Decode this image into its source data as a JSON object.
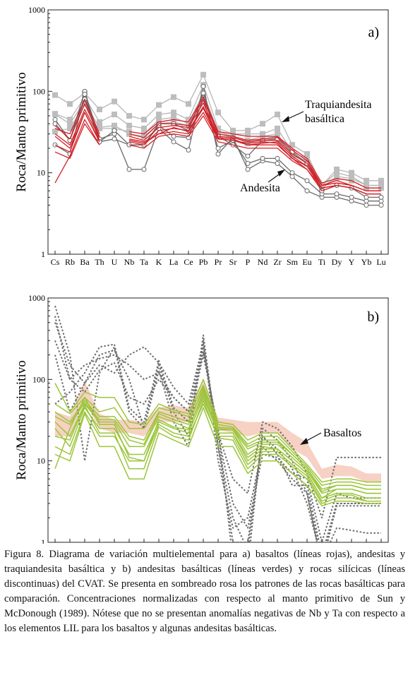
{
  "chart_data": [
    {
      "type": "line",
      "panel_label": "a)",
      "ylabel": "Roca/Manto primitivo",
      "yscale": "log",
      "ylim": [
        1,
        1000
      ],
      "ytick_labels": [
        "1",
        "10",
        "100",
        "1000"
      ],
      "categories": [
        "Cs",
        "Rb",
        "Ba",
        "Th",
        "U",
        "Nb",
        "Ta",
        "K",
        "La",
        "Ce",
        "Pb",
        "Pr",
        "Sr",
        "P",
        "Nd",
        "Zr",
        "Sm",
        "Eu",
        "Ti",
        "Dy",
        "Y",
        "Yb",
        "Lu"
      ],
      "annotations": [
        "Traquiandesita basáltica",
        "Andesita"
      ],
      "colors": {
        "basaltos": "#d42027",
        "andesitas": "#6a6a6a",
        "traquiandesita": "#b5b5b5"
      },
      "series": [
        {
          "group": "basaltos",
          "values": [
            38,
            26,
            70,
            28,
            null,
            30,
            27,
            40,
            40,
            38,
            80,
            30,
            28,
            25,
            26,
            27,
            19,
            14,
            7,
            8,
            7,
            6,
            6
          ]
        },
        {
          "group": "basaltos",
          "values": [
            30,
            22,
            60,
            27,
            null,
            28,
            25,
            36,
            38,
            36,
            72,
            28,
            27,
            24,
            25,
            25,
            17,
            13,
            7,
            7.5,
            7,
            6,
            6
          ]
        },
        {
          "group": "basaltos",
          "values": [
            22,
            18,
            55,
            25,
            null,
            24,
            22,
            33,
            35,
            33,
            65,
            27,
            26,
            22,
            23,
            24,
            16,
            12,
            6.5,
            7,
            6.5,
            5.5,
            5.5
          ]
        },
        {
          "group": "basaltos",
          "values": [
            7.5,
            16,
            45,
            22,
            null,
            25,
            23,
            30,
            32,
            30,
            55,
            26,
            25,
            23,
            24,
            23,
            15,
            11,
            6.5,
            7,
            6.5,
            5.5,
            5.5
          ]
        },
        {
          "group": "basaltos",
          "values": [
            35,
            30,
            80,
            30,
            null,
            32,
            30,
            42,
            45,
            42,
            85,
            32,
            30,
            28,
            28,
            28,
            20,
            15,
            7.5,
            8.5,
            8,
            6.5,
            6.5
          ]
        },
        {
          "group": "basaltos",
          "values": [
            28,
            20,
            55,
            24,
            null,
            26,
            24,
            30,
            36,
            32,
            62,
            26,
            25,
            22,
            22,
            22,
            15,
            12,
            7,
            7.5,
            7,
            6,
            6
          ]
        },
        {
          "group": "basaltos",
          "values": [
            18,
            15,
            40,
            22,
            null,
            22,
            20,
            28,
            30,
            28,
            50,
            24,
            22,
            20,
            20,
            20,
            14,
            11,
            6,
            7,
            6.5,
            5.5,
            5.5
          ]
        },
        {
          "group": "andesitas",
          "values": [
            45,
            25,
            100,
            26,
            30,
            11,
            11,
            35,
            24,
            19,
            115,
            17,
            27,
            11,
            14,
            13,
            9,
            6,
            5,
            5,
            4.5,
            4,
            4
          ]
        },
        {
          "group": "andesitas",
          "values": [
            22,
            17,
            92,
            24,
            26,
            22,
            22,
            38,
            28,
            27,
            80,
            20,
            25,
            13,
            15,
            15,
            10,
            8,
            5.5,
            5.5,
            5,
            4.5,
            4.5
          ]
        },
        {
          "group": "andesitas",
          "values": [
            40,
            25,
            80,
            24,
            33,
            22,
            22,
            40,
            40,
            33,
            95,
            28,
            22,
            16,
            25,
            26,
            18,
            13,
            6,
            7,
            6.5,
            5,
            5
          ]
        },
        {
          "group": "traquiandesita",
          "values": [
            90,
            70,
            95,
            60,
            75,
            50,
            45,
            68,
            85,
            70,
            160,
            55,
            33,
            33,
            40,
            52,
            22,
            17,
            7,
            11,
            10,
            8,
            8
          ]
        },
        {
          "group": "traquiandesita",
          "values": [
            53,
            45,
            85,
            42,
            52,
            38,
            35,
            52,
            55,
            45,
            120,
            35,
            30,
            30,
            30,
            35,
            18,
            15,
            7,
            10,
            9,
            7,
            7
          ]
        },
        {
          "group": "traquiandesita",
          "values": [
            32,
            35,
            70,
            36,
            38,
            30,
            28,
            40,
            42,
            38,
            90,
            30,
            27,
            25,
            28,
            30,
            16,
            14,
            6.5,
            8.5,
            8,
            6.5,
            6.5
          ]
        },
        {
          "group": "traquiandesita",
          "values": [
            52,
            40,
            75,
            35,
            35,
            32,
            30,
            45,
            48,
            40,
            95,
            32,
            28,
            23,
            26,
            28,
            17,
            13,
            6.5,
            9,
            8.5,
            7,
            7
          ]
        }
      ]
    },
    {
      "type": "line",
      "panel_label": "b)",
      "ylabel": "Roca/Manto primitivo",
      "yscale": "log",
      "ylim": [
        1,
        1000
      ],
      "ytick_labels": [
        "1",
        "10",
        "100",
        "1000"
      ],
      "categories": [
        "Cs",
        "Rb",
        "Ba",
        "Th",
        "U",
        "Nb",
        "Ta",
        "K",
        "La",
        "Ce",
        "Pb",
        "Pr",
        "Sr",
        "P",
        "Nd",
        "Zr",
        "Sm",
        "Eu",
        "Ti",
        "Dy",
        "Y",
        "Yb",
        "Lu"
      ],
      "annotations": [
        "Basaltos"
      ],
      "colors": {
        "andesitas_basalticas": "#9cc53b",
        "silicicas": "#6e6e6e",
        "sombreado": "#f6c9b8"
      },
      "shade_low": [
        20,
        20,
        55,
        25,
        22,
        22,
        20,
        30,
        30,
        30,
        55,
        24,
        22,
        20,
        22,
        22,
        14,
        11,
        6,
        6.5,
        6.5,
        5.5,
        5.5
      ],
      "shade_high": [
        40,
        35,
        95,
        38,
        32,
        32,
        30,
        45,
        48,
        45,
        100,
        34,
        32,
        30,
        30,
        30,
        22,
        17,
        8,
        9,
        8.5,
        7,
        7
      ],
      "series": [
        {
          "group": "andesitas_basalticas",
          "values": [
            90,
            40,
            70,
            60,
            60,
            30,
            28,
            50,
            42,
            38,
            100,
            30,
            28,
            18,
            22,
            22,
            14,
            9,
            5.5,
            6,
            6,
            5.5,
            5.5
          ]
        },
        {
          "group": "andesitas_basalticas",
          "values": [
            50,
            38,
            60,
            40,
            45,
            25,
            25,
            45,
            40,
            35,
            85,
            28,
            26,
            16,
            20,
            20,
            13,
            8.5,
            5,
            5.5,
            5.5,
            5,
            5
          ]
        },
        {
          "group": "andesitas_basalticas",
          "values": [
            40,
            30,
            55,
            35,
            35,
            20,
            18,
            40,
            35,
            30,
            75,
            26,
            25,
            15,
            18,
            18,
            12,
            8,
            4.5,
            5,
            5,
            4.5,
            4.5
          ]
        },
        {
          "group": "andesitas_basalticas",
          "values": [
            30,
            20,
            50,
            30,
            30,
            15,
            15,
            35,
            30,
            25,
            65,
            24,
            24,
            12,
            16,
            16,
            11,
            7.5,
            4,
            4.5,
            4.5,
            4,
            4
          ]
        },
        {
          "group": "andesitas_basalticas",
          "values": [
            25,
            15,
            45,
            25,
            25,
            12,
            12,
            30,
            25,
            22,
            60,
            22,
            22,
            10,
            14,
            14,
            10,
            7,
            3.5,
            4,
            4,
            3.5,
            3.5
          ]
        },
        {
          "group": "andesitas_basalticas",
          "values": [
            15,
            12,
            40,
            20,
            20,
            10,
            10,
            28,
            22,
            20,
            50,
            20,
            20,
            9,
            13,
            13,
            9,
            6.5,
            3.2,
            3.8,
            3.8,
            3.2,
            3.2
          ]
        },
        {
          "group": "andesitas_basalticas",
          "values": [
            8,
            25,
            60,
            28,
            28,
            11,
            10,
            32,
            26,
            24,
            70,
            22,
            22,
            11,
            15,
            14,
            10,
            7,
            3.5,
            4.5,
            4.5,
            4,
            4
          ]
        },
        {
          "group": "andesitas_basalticas",
          "values": [
            20,
            18,
            48,
            22,
            22,
            8,
            8,
            26,
            20,
            18,
            55,
            19,
            18,
            8,
            12,
            12,
            8.5,
            6,
            3,
            3.5,
            3.5,
            3.2,
            3.2
          ]
        },
        {
          "group": "andesitas_basalticas",
          "values": [
            35,
            28,
            52,
            32,
            32,
            18,
            16,
            38,
            32,
            28,
            80,
            25,
            24,
            14,
            17,
            17,
            12,
            8,
            4.2,
            5,
            5,
            4.5,
            4.5
          ]
        },
        {
          "group": "andesitas_basalticas",
          "values": [
            12,
            10,
            38,
            15,
            15,
            6,
            6,
            22,
            18,
            15,
            45,
            15,
            15,
            7,
            10,
            10,
            7,
            5,
            2.8,
            3.2,
            3.2,
            3,
            3
          ]
        },
        {
          "group": "silicicas",
          "values": [
            800,
            200,
            10,
            120,
            250,
            40,
            25,
            150,
            40,
            20,
            350,
            15,
            2,
            0.8,
            20,
            12,
            5,
            5,
            0.7,
            3,
            3,
            3,
            3
          ]
        },
        {
          "group": "silicicas",
          "values": [
            500,
            150,
            90,
            200,
            230,
            100,
            25,
            130,
            30,
            15,
            300,
            10,
            1.5,
            2,
            15,
            10,
            6,
            4,
            0.5,
            3,
            3,
            3,
            3
          ]
        },
        {
          "group": "silicicas",
          "values": [
            300,
            100,
            150,
            180,
            200,
            150,
            100,
            120,
            60,
            40,
            250,
            20,
            3,
            1.5,
            12,
            11,
            7,
            6,
            1,
            4,
            3.5,
            3.5,
            3.5
          ]
        },
        {
          "group": "silicicas",
          "values": [
            50,
            70,
            120,
            250,
            270,
            45,
            30,
            170,
            45,
            30,
            200,
            25,
            0.6,
            0.5,
            25,
            18,
            10,
            4,
            0.6,
            1.5,
            1.4,
            1.3,
            1.3
          ]
        },
        {
          "group": "silicicas",
          "values": [
            200,
            40,
            90,
            150,
            120,
            200,
            250,
            160,
            80,
            50,
            280,
            15,
            1,
            1,
            20,
            14,
            8,
            3,
            0.6,
            2.8,
            2.8,
            2.8,
            2.8
          ]
        },
        {
          "group": "silicicas",
          "values": [
            600,
            100,
            70,
            130,
            160,
            60,
            50,
            100,
            60,
            40,
            220,
            22,
            6,
            4,
            30,
            25,
            15,
            7,
            2,
            11,
            11,
            11,
            11
          ]
        }
      ]
    }
  ],
  "caption": "Figura 8. Diagrama de variación multielemental para a) basaltos (líneas rojas), andesitas y traquiandesita basáltica y b) andesitas basálticas (líneas verdes) y rocas silícicas (líneas discontinuas) del CVAT. Se presenta en sombreado rosa los patrones de las rocas basálticas para comparación. Concentraciones normalizadas con respecto al manto primitivo de Sun y McDonough (1989). Nótese que no se presentan anomalías negativas de Nb y Ta con respecto a los elementos LIL para los basaltos y algunas andesitas basálticas."
}
